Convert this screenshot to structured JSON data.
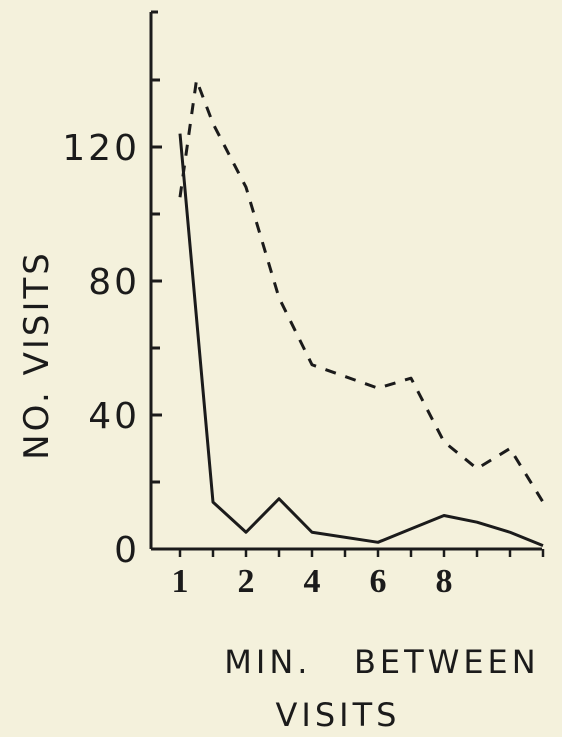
{
  "chart_data": {
    "type": "line",
    "xlabel_line1": "MIN.   BETWEEN",
    "xlabel_line2": "VISITS",
    "ylabel": "NO. VISITS",
    "ylim": [
      0,
      120
    ],
    "y_ticks": [
      0,
      40,
      80,
      120
    ],
    "x_tick_labels": [
      "1",
      "2",
      "4",
      "6",
      "8"
    ],
    "grid": false,
    "legend": "none",
    "series": [
      {
        "style": "solid",
        "color": "#1b1b1b",
        "points": [
          [
            1,
            124
          ],
          [
            1.5,
            14
          ],
          [
            2,
            5
          ],
          [
            2.5,
            15
          ],
          [
            3,
            5
          ],
          [
            4,
            2
          ],
          [
            4.5,
            6
          ],
          [
            5,
            10
          ],
          [
            5.5,
            8
          ],
          [
            6,
            5
          ],
          [
            6.5,
            1
          ]
        ]
      },
      {
        "style": "dashed",
        "color": "#1b1b1b",
        "points": [
          [
            1,
            105
          ],
          [
            1.25,
            140
          ],
          [
            1.5,
            127
          ],
          [
            2,
            108
          ],
          [
            2.5,
            75
          ],
          [
            3,
            55
          ],
          [
            4,
            48
          ],
          [
            4.5,
            51
          ],
          [
            5,
            32
          ],
          [
            5.5,
            24
          ],
          [
            6,
            30
          ],
          [
            6.5,
            14
          ]
        ]
      }
    ]
  }
}
